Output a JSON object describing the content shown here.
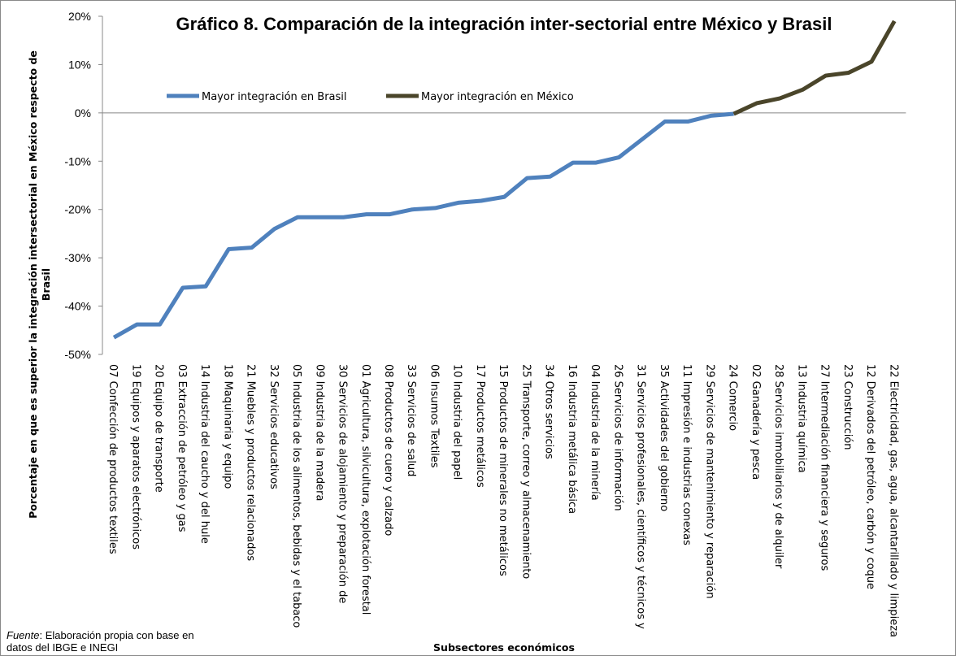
{
  "chart_data": {
    "type": "line",
    "title": "Gráfico 8. Comparación de la integración inter-sectorial entre México y Brasil",
    "y_label": [
      "Porcentaje en que es superior la integración intersectorial en México respecto de",
      "Brasil"
    ],
    "x_label": "Subsectores económicos",
    "source": {
      "label": "Fuente",
      "lines": [
        ": Elaboración propia con base en",
        "datos del IBGE e INEGI"
      ]
    },
    "categories": [
      "07 Confección de productos textiles",
      "19 Equipos y aparatos electrónicos",
      "20 Equipo de transporte",
      "03 Extracción de petróleo y gas",
      "14 Industria del caucho y del hule",
      "18 Maquinaria y equipo",
      "21 Muebles y productos relacionados",
      "32 Servicios educativos",
      "05 Industria de los alimentos, bebidas y el tabaco",
      "09 Industria de la madera",
      "30 Servicios de alojamiento y preparación de",
      "01 Agricultura, silvicultura, explotación forestal",
      "08 Productos de cuero y calzado",
      "33 Servicios de salud",
      "06 Insumos Textiles",
      "10 Industria del papel",
      "17 Productos metálicos",
      "15 Productos de minerales no metálicos",
      "25 Transporte, correo y almacenamiento",
      "34 Otros servicios",
      "16 Industria metálica básica",
      "04 Industria de la minería",
      "26 Servicios de información",
      "31 Servicios profesionales, científicos y técnicos y",
      "35 Actividades del gobierno",
      "11 Impresión e industrias conexas",
      "29 Servicios de mantenimiento y reparación",
      "24 Comercio",
      "02 Ganadería y pesca",
      "28 Servicios inmobiliarios y de alquiler",
      "13 Industria química",
      "27 Intermediación financiera y seguros",
      "23 Construcción",
      "12 Derivados del petróleo, carbón y coque",
      "22 Electricidad, gas, agua, alcantarillado y limpieza"
    ],
    "series": [
      {
        "name": "Mayor integración en Brasil",
        "color": "#4f81bd",
        "values": [
          -46.5,
          -43.8,
          -43.8,
          -36.2,
          -35.9,
          -28.2,
          -27.9,
          -24,
          -21.6,
          -21.6,
          -21.6,
          -21,
          -21,
          -20,
          -19.7,
          -18.6,
          -18.2,
          -17.4,
          -13.5,
          -13.2,
          -10.3,
          -10.3,
          -9.2,
          -5.5,
          -1.8,
          -1.8,
          -0.6,
          -0.2,
          null,
          null,
          null,
          null,
          null,
          null,
          null
        ]
      },
      {
        "name": "Mayor integración en México",
        "color": "#4a452a",
        "values": [
          null,
          null,
          null,
          null,
          null,
          null,
          null,
          null,
          null,
          null,
          null,
          null,
          null,
          null,
          null,
          null,
          null,
          null,
          null,
          null,
          null,
          null,
          null,
          null,
          null,
          null,
          null,
          -0.2,
          2,
          3,
          4.8,
          7.7,
          8.3,
          10.6,
          19
        ]
      }
    ],
    "ylim": [
      -50,
      20
    ],
    "yticks": [
      {
        "value": -50,
        "label": "-50%"
      },
      {
        "value": -40,
        "label": "-40%"
      },
      {
        "value": -30,
        "label": "-30%"
      },
      {
        "value": -20,
        "label": "-20%"
      },
      {
        "value": -10,
        "label": "-10%"
      },
      {
        "value": 0,
        "label": "0%"
      },
      {
        "value": 10,
        "label": "10%"
      },
      {
        "value": 20,
        "label": "20%"
      }
    ]
  }
}
